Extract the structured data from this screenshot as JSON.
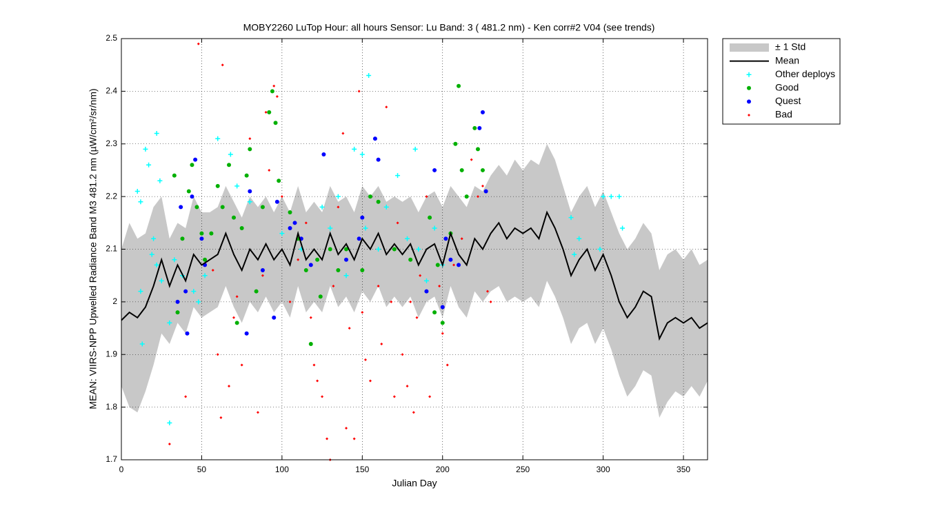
{
  "chart_data": {
    "type": "line",
    "title": "MOBY2260   LuTop  Hour: all hours  Sensor: Lu Band: 3 ( 481.2 nm)  - Ken corr#2 V04 (see trends)",
    "xlabel": "Julian Day",
    "ylabel": "MEAN: VIIRS-NPP Upwelled Radiance Band M3 481.2 nm (µW/cm²/sr/nm)",
    "xlim": [
      0,
      365
    ],
    "ylim": [
      1.7,
      2.5
    ],
    "xticks": [
      0,
      50,
      100,
      150,
      200,
      250,
      300,
      350
    ],
    "yticks": [
      1.7,
      1.8,
      1.9,
      2,
      2.1,
      2.2,
      2.3,
      2.4,
      2.5
    ],
    "grid": true,
    "legend": "outside-upper-right",
    "x": [
      0,
      5,
      10,
      15,
      20,
      25,
      30,
      35,
      40,
      45,
      50,
      55,
      60,
      65,
      70,
      75,
      80,
      85,
      90,
      95,
      100,
      105,
      110,
      115,
      120,
      125,
      130,
      135,
      140,
      145,
      150,
      155,
      160,
      165,
      170,
      175,
      180,
      185,
      190,
      195,
      200,
      205,
      210,
      215,
      220,
      225,
      230,
      235,
      240,
      245,
      250,
      255,
      260,
      265,
      270,
      275,
      280,
      285,
      290,
      295,
      300,
      305,
      310,
      315,
      320,
      325,
      330,
      335,
      340,
      345,
      350,
      355,
      360,
      365
    ],
    "band": {
      "name": "± 1 Std",
      "color": "#c8c8c8",
      "upper": [
        2.1,
        2.15,
        2.12,
        2.13,
        2.18,
        2.2,
        2.12,
        2.15,
        2.14,
        2.2,
        2.17,
        2.17,
        2.18,
        2.22,
        2.19,
        2.16,
        2.2,
        2.18,
        2.2,
        2.17,
        2.2,
        2.17,
        2.22,
        2.17,
        2.19,
        2.17,
        2.22,
        2.19,
        2.2,
        2.17,
        2.22,
        2.2,
        2.22,
        2.19,
        2.2,
        2.19,
        2.2,
        2.17,
        2.2,
        2.21,
        2.18,
        2.22,
        2.2,
        2.18,
        2.22,
        2.21,
        2.24,
        2.26,
        2.24,
        2.27,
        2.25,
        2.27,
        2.26,
        2.3,
        2.27,
        2.22,
        2.17,
        2.2,
        2.22,
        2.18,
        2.21,
        2.17,
        2.13,
        2.1,
        2.12,
        2.15,
        2.13,
        2.06,
        2.09,
        2.1,
        2.08,
        2.1,
        2.07,
        2.08
      ],
      "lower": [
        1.84,
        1.8,
        1.79,
        1.83,
        1.88,
        1.94,
        1.92,
        1.96,
        1.94,
        1.99,
        1.97,
        1.98,
        1.99,
        2.03,
        1.99,
        1.96,
        2.0,
        1.98,
        2.01,
        1.98,
        2.0,
        1.97,
        2.03,
        1.98,
        2.0,
        1.98,
        2.03,
        1.99,
        2.01,
        1.98,
        2.02,
        2.0,
        2.03,
        1.99,
        2.01,
        1.99,
        2.01,
        1.97,
        2.0,
        2.01,
        1.97,
        2.03,
        1.99,
        1.97,
        2.02,
        2.0,
        2.02,
        2.03,
        2.0,
        2.01,
        2.0,
        2.01,
        1.99,
        2.04,
        2.01,
        1.97,
        1.92,
        1.95,
        1.96,
        1.92,
        1.95,
        1.91,
        1.86,
        1.82,
        1.84,
        1.87,
        1.86,
        1.78,
        1.81,
        1.83,
        1.82,
        1.84,
        1.82,
        1.85
      ]
    },
    "mean": {
      "name": "Mean",
      "color": "#000000",
      "values": [
        1.965,
        1.98,
        1.97,
        1.99,
        2.03,
        2.08,
        2.03,
        2.07,
        2.04,
        2.09,
        2.07,
        2.08,
        2.09,
        2.13,
        2.09,
        2.06,
        2.1,
        2.08,
        2.11,
        2.08,
        2.1,
        2.07,
        2.13,
        2.08,
        2.1,
        2.08,
        2.13,
        2.09,
        2.11,
        2.08,
        2.12,
        2.1,
        2.13,
        2.09,
        2.11,
        2.09,
        2.11,
        2.07,
        2.1,
        2.11,
        2.07,
        2.13,
        2.09,
        2.07,
        2.12,
        2.1,
        2.13,
        2.15,
        2.12,
        2.14,
        2.13,
        2.14,
        2.12,
        2.17,
        2.14,
        2.1,
        2.05,
        2.08,
        2.1,
        2.06,
        2.09,
        2.05,
        2.0,
        1.97,
        1.99,
        2.02,
        2.01,
        1.93,
        1.96,
        1.97,
        1.96,
        1.97,
        1.95,
        1.96
      ]
    },
    "series": [
      {
        "name": "Other deploys",
        "color": "#00ffff",
        "marker": "plus",
        "x": [
          10,
          12,
          15,
          17,
          22,
          24,
          20,
          22,
          25,
          30,
          30,
          33,
          13,
          19,
          38,
          45,
          48,
          52,
          60,
          68,
          72,
          80,
          100,
          112,
          125,
          130,
          135,
          140,
          145,
          150,
          154,
          152,
          160,
          165,
          172,
          178,
          183,
          185,
          190,
          195,
          200,
          280,
          282,
          285,
          300,
          305,
          310,
          312,
          298,
          12
        ],
        "values": [
          2.21,
          2.19,
          2.29,
          2.26,
          2.32,
          2.23,
          2.12,
          2.07,
          2.04,
          1.96,
          1.77,
          2.08,
          1.92,
          2.09,
          2.05,
          2.02,
          2.0,
          2.05,
          2.31,
          2.28,
          2.22,
          2.19,
          2.13,
          2.1,
          2.18,
          2.14,
          2.2,
          2.05,
          2.29,
          2.28,
          2.43,
          2.14,
          2.1,
          2.18,
          2.24,
          2.12,
          2.29,
          2.1,
          2.04,
          2.14,
          2.07,
          2.16,
          2.09,
          2.12,
          2.2,
          2.2,
          2.2,
          2.14,
          2.1,
          2.02
        ]
      },
      {
        "name": "Good",
        "color": "#00b000",
        "marker": "dot",
        "x": [
          33,
          35,
          38,
          42,
          44,
          47,
          50,
          52,
          56,
          60,
          63,
          67,
          70,
          72,
          75,
          78,
          80,
          84,
          88,
          92,
          94,
          96,
          98,
          105,
          110,
          115,
          118,
          122,
          124,
          130,
          135,
          140,
          150,
          155,
          160,
          170,
          192,
          195,
          200,
          205,
          208,
          210,
          212,
          215,
          220,
          222,
          225,
          197,
          180
        ],
        "values": [
          2.24,
          1.98,
          2.12,
          2.21,
          2.26,
          2.18,
          2.13,
          2.08,
          2.13,
          2.22,
          2.18,
          2.26,
          2.16,
          1.96,
          2.14,
          2.24,
          2.29,
          2.02,
          2.18,
          2.36,
          2.4,
          2.34,
          2.23,
          2.17,
          2.12,
          2.06,
          1.92,
          2.08,
          2.01,
          2.1,
          2.06,
          2.1,
          2.06,
          2.2,
          2.19,
          2.1,
          2.16,
          1.98,
          1.96,
          2.13,
          2.3,
          2.41,
          2.25,
          2.2,
          2.33,
          2.29,
          2.25,
          2.07,
          2.08
        ]
      },
      {
        "name": "Quest",
        "color": "#0000ff",
        "marker": "dot",
        "x": [
          35,
          37,
          40,
          41,
          44,
          46,
          50,
          52,
          78,
          80,
          88,
          95,
          97,
          105,
          108,
          112,
          118,
          126,
          140,
          148,
          150,
          158,
          160,
          190,
          195,
          200,
          202,
          205,
          223,
          225,
          227,
          210
        ],
        "values": [
          2.0,
          2.18,
          2.02,
          1.94,
          2.2,
          2.27,
          2.12,
          2.07,
          1.94,
          2.21,
          2.06,
          1.97,
          2.19,
          2.14,
          2.15,
          2.12,
          2.07,
          2.28,
          2.08,
          2.12,
          2.16,
          2.31,
          2.27,
          2.02,
          2.25,
          1.99,
          2.12,
          2.08,
          2.33,
          2.36,
          2.21,
          2.07
        ]
      },
      {
        "name": "Bad",
        "color": "#ff0000",
        "marker": "diamond",
        "x": [
          30,
          40,
          48,
          60,
          62,
          63,
          70,
          72,
          75,
          80,
          85,
          88,
          90,
          95,
          97,
          100,
          105,
          110,
          115,
          118,
          120,
          122,
          125,
          128,
          130,
          132,
          135,
          138,
          140,
          142,
          145,
          148,
          150,
          152,
          155,
          160,
          162,
          165,
          168,
          170,
          172,
          175,
          178,
          180,
          182,
          184,
          186,
          190,
          192,
          198,
          200,
          203,
          207,
          212,
          218,
          222,
          225,
          228,
          230,
          67,
          92,
          57
        ],
        "values": [
          1.73,
          1.82,
          2.49,
          1.9,
          1.78,
          2.45,
          1.97,
          2.01,
          1.88,
          2.31,
          1.79,
          2.05,
          2.36,
          2.41,
          2.39,
          2.2,
          2.0,
          2.08,
          2.15,
          1.97,
          1.88,
          1.85,
          1.82,
          1.74,
          1.7,
          2.03,
          2.18,
          2.32,
          1.76,
          1.95,
          1.74,
          2.4,
          1.98,
          1.89,
          1.85,
          2.03,
          1.92,
          2.37,
          2.0,
          1.82,
          2.15,
          1.9,
          1.84,
          2.0,
          1.79,
          1.97,
          2.05,
          2.2,
          1.82,
          2.03,
          1.94,
          1.88,
          2.07,
          2.12,
          2.27,
          2.2,
          2.22,
          2.02,
          2.0,
          1.84,
          2.25,
          2.06
        ]
      }
    ]
  }
}
